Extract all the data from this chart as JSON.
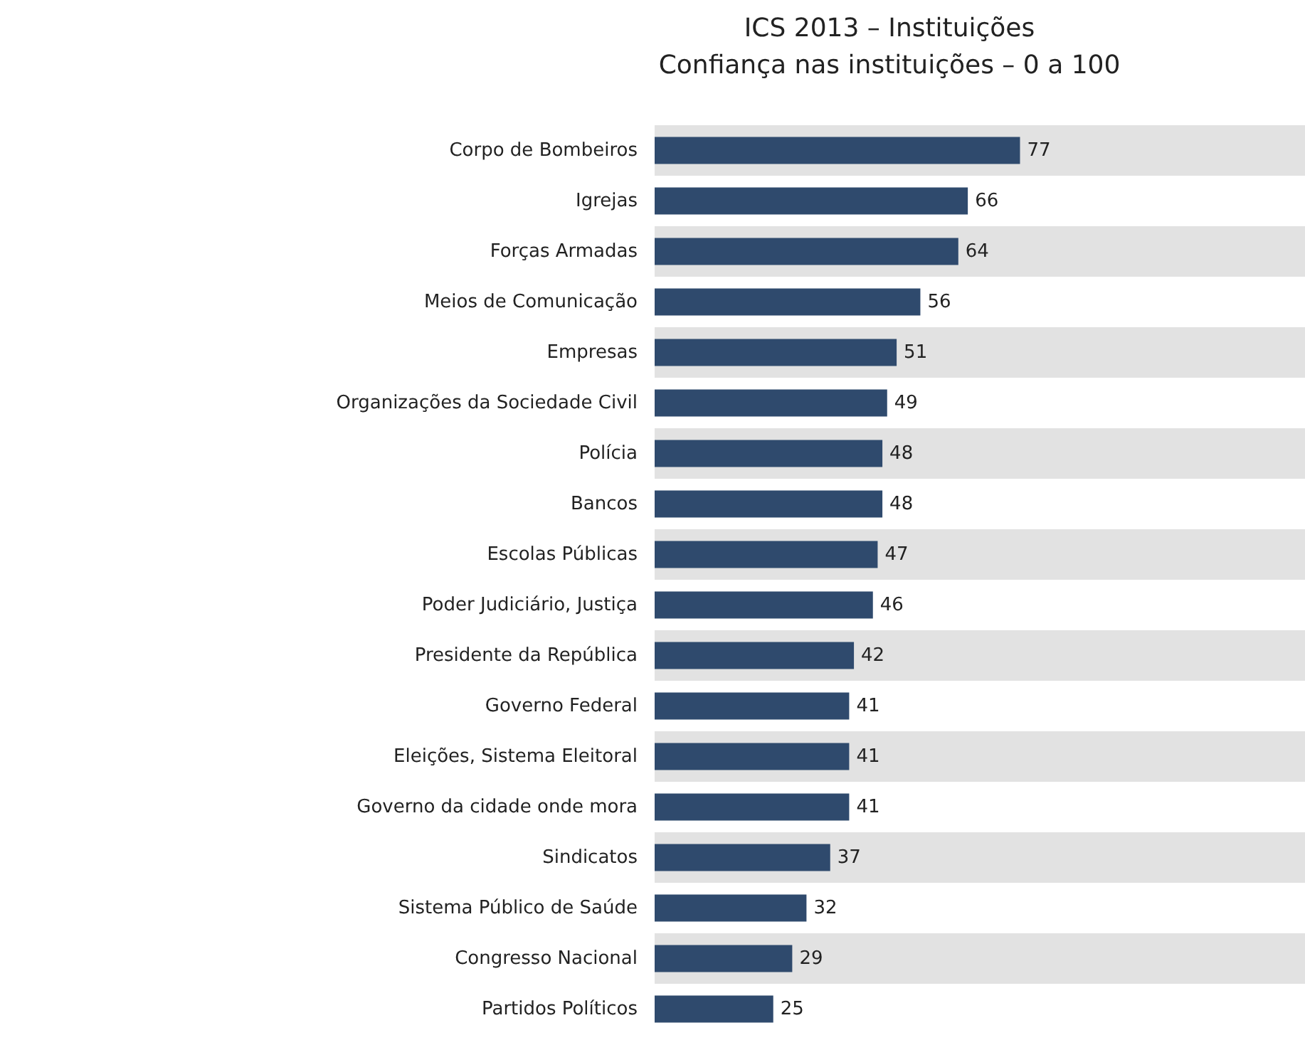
{
  "chart_data": {
    "type": "bar",
    "orientation": "horizontal",
    "title": "ICS 2013 – Instituições",
    "subtitle": "Confiança nas instituições – 0 a 100",
    "categories": [
      "Corpo de Bombeiros",
      "Igrejas",
      "Forças Armadas",
      "Meios de Comunicação",
      "Empresas",
      "Organizações da Sociedade Civil",
      "Polícia",
      "Bancos",
      "Escolas Públicas",
      "Poder Judiciário, Justiça",
      "Presidente da República",
      "Governo Federal",
      "Eleições, Sistema Eleitoral",
      "Governo da cidade onde mora",
      "Sindicatos",
      "Sistema Público de Saúde",
      "Congresso Nacional",
      "Partidos Políticos"
    ],
    "values": [
      77,
      66,
      64,
      56,
      51,
      49,
      48,
      48,
      47,
      46,
      42,
      41,
      41,
      41,
      37,
      32,
      29,
      25
    ],
    "color": "#2f4a6d",
    "data_labels": true,
    "grid": false
  }
}
